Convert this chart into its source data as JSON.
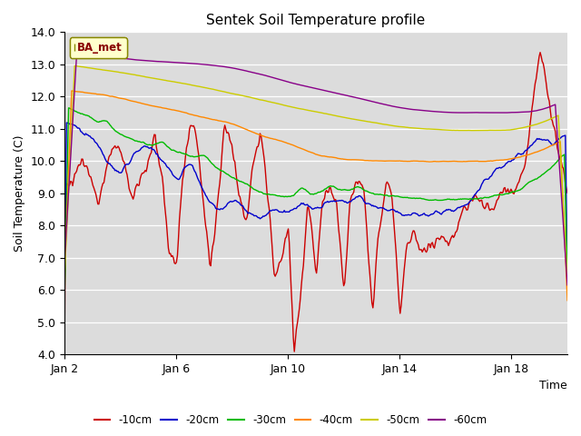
{
  "title": "Sentek Soil Temperature profile",
  "xlabel": "Time",
  "ylabel": "Soil Temperature (C)",
  "ylim": [
    4.0,
    14.0
  ],
  "yticks": [
    4.0,
    5.0,
    6.0,
    7.0,
    8.0,
    9.0,
    10.0,
    11.0,
    12.0,
    13.0,
    14.0
  ],
  "xtick_labels": [
    "Jan 2",
    "Jan 6",
    "Jan 10",
    "Jan 14",
    "Jan 18"
  ],
  "background_color": "#dcdcdc",
  "legend_label": "BA_met",
  "series_colors": {
    "-10cm": "#cc0000",
    "-20cm": "#0000cc",
    "-30cm": "#00bb00",
    "-40cm": "#ff8800",
    "-50cm": "#cccc00",
    "-60cm": "#880088"
  },
  "n_points": 500
}
